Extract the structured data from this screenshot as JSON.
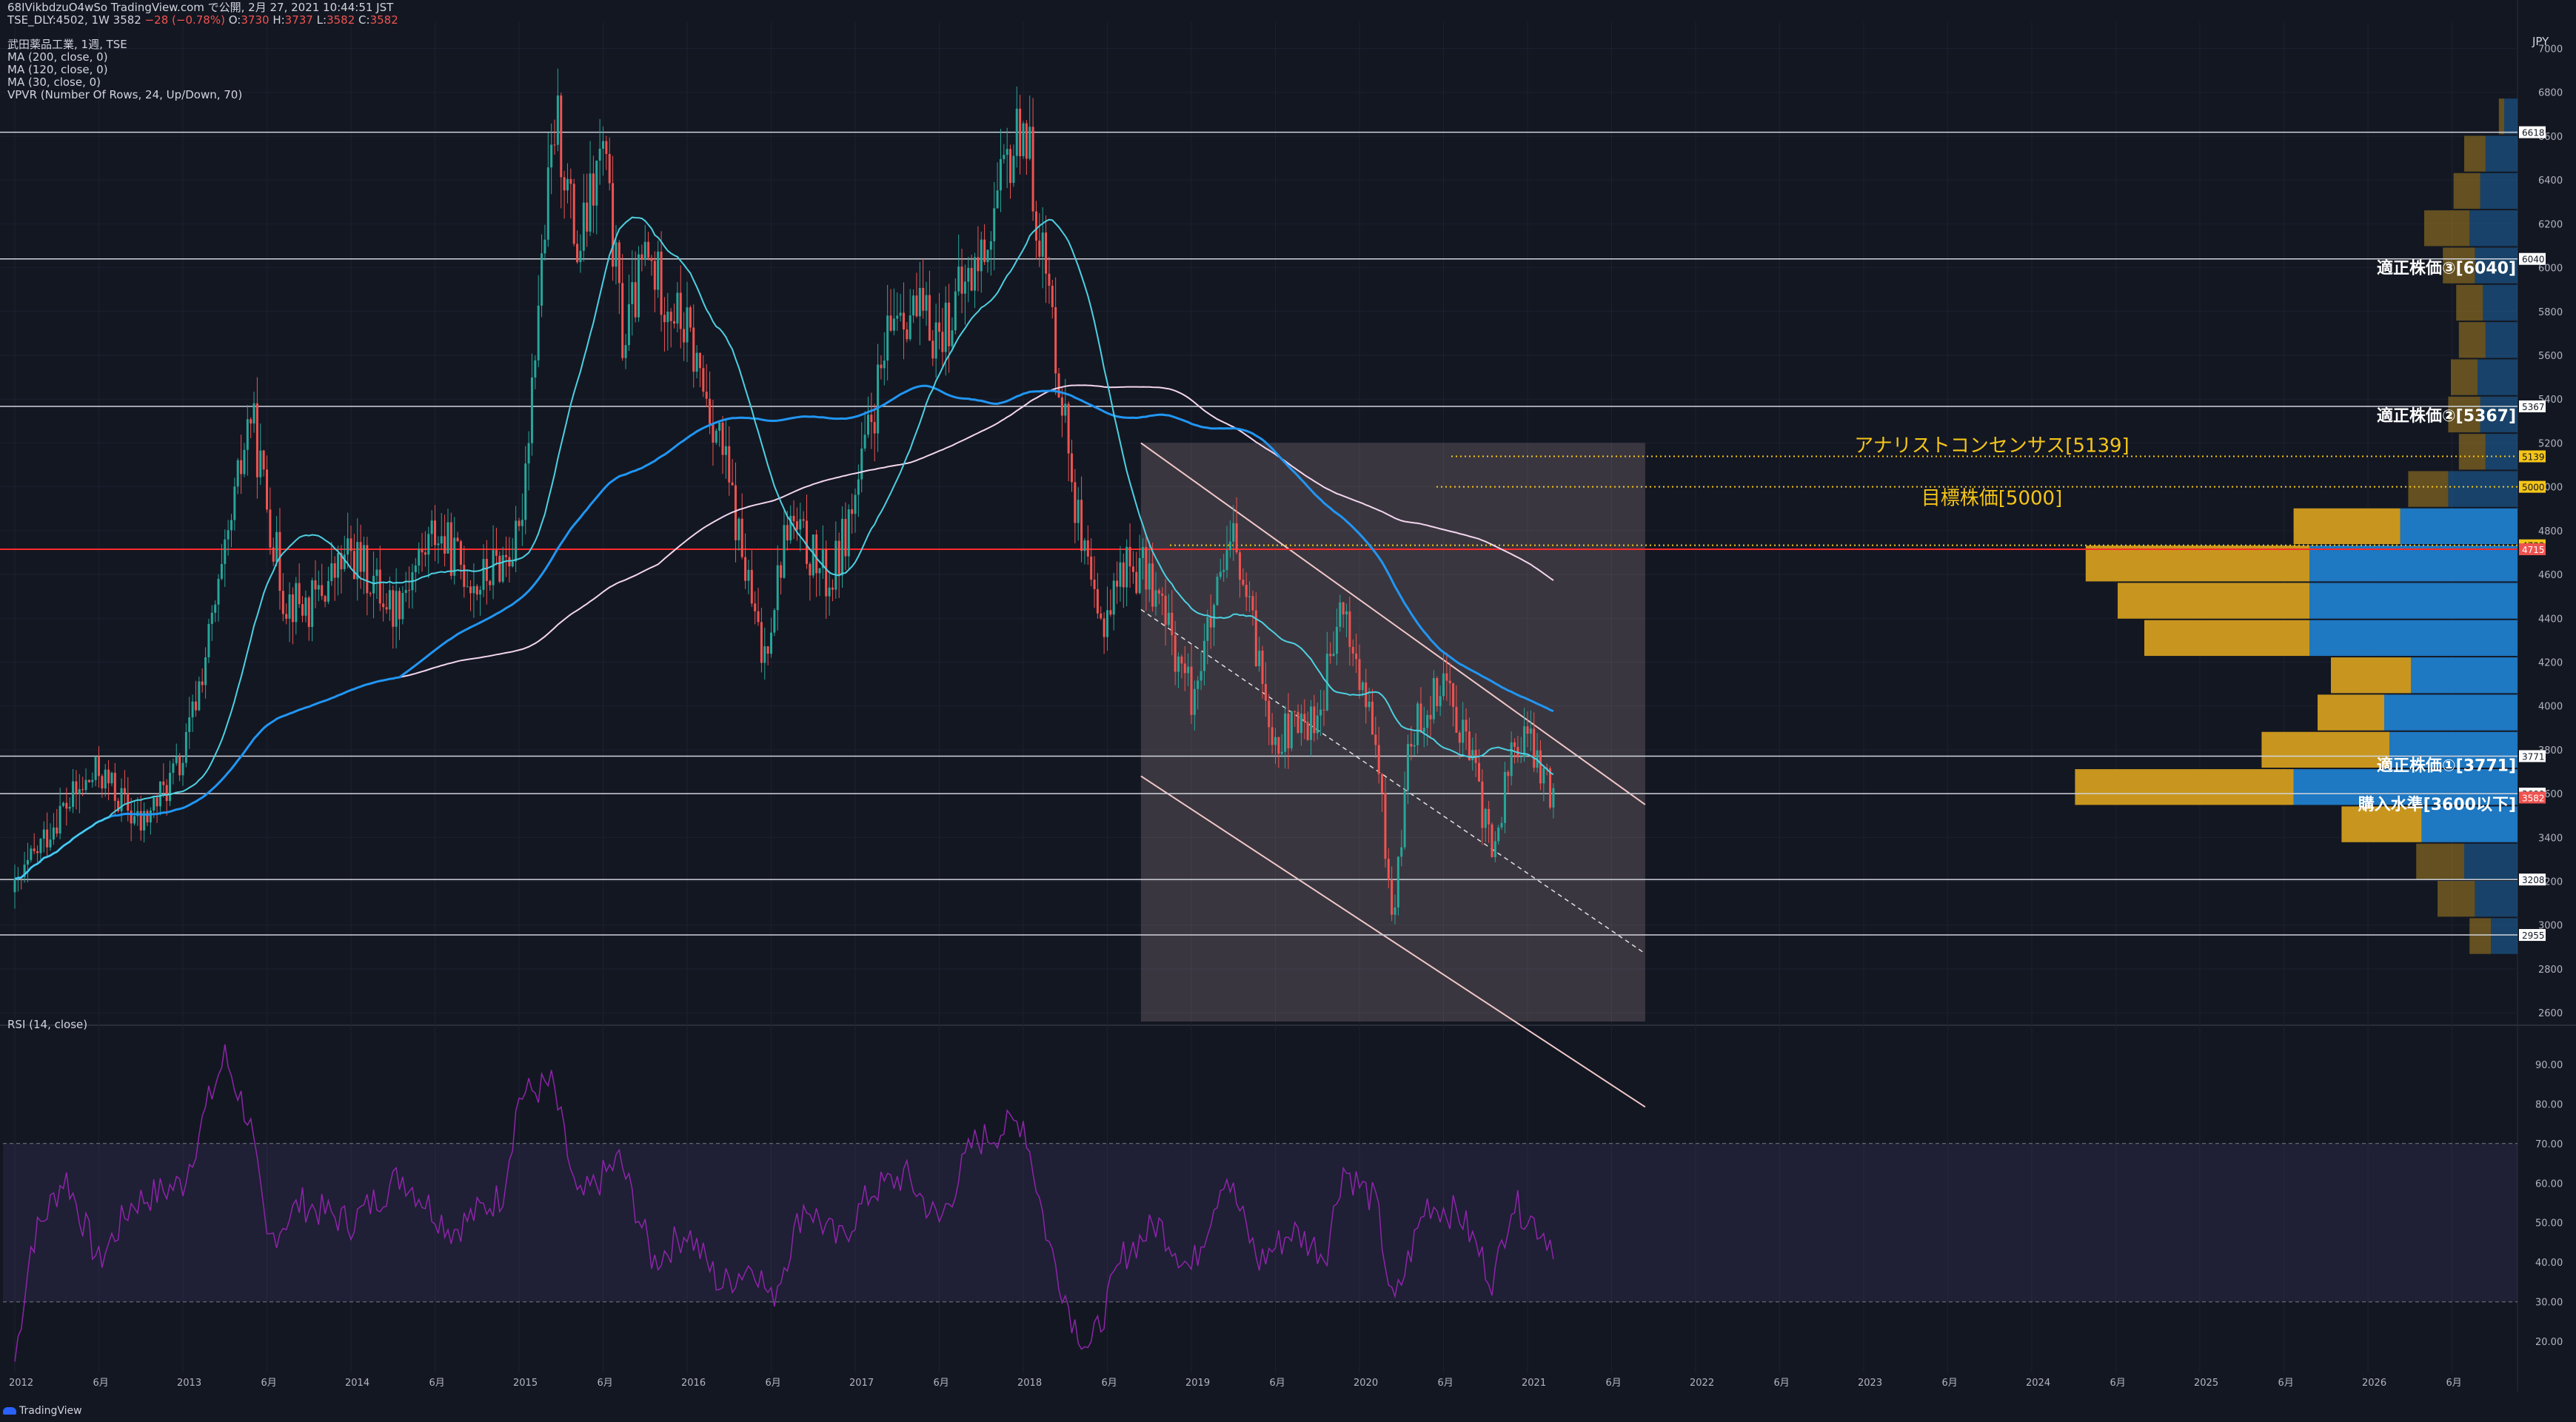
{
  "header": {
    "line1": "68IVikbdzuO4wSo TradingView.com で公開, 2月 27, 2021 10:44:51 JST",
    "symbol_line": "TSE_DLY:4502, 1W 3582",
    "change": "−28 (−0.78%)",
    "o_label": "O:",
    "o": "3730",
    "h_label": "H:",
    "h": "3737",
    "l_label": "L:",
    "l": "3582",
    "c_label": "C:",
    "c": "3582"
  },
  "legend": [
    "武田薬品工業, 1週, TSE",
    "MA (200, close, 0)",
    "MA (120, close, 0)",
    "MA (30, close, 0)",
    "VPVR (Number Of Rows, 24, Up/Down, 70)"
  ],
  "rsi_label": "RSI (14, close)",
  "currency": "JPY",
  "watermark": "TradingView",
  "colors": {
    "background": "#131722",
    "up": "#26a69a",
    "down": "#ef5350",
    "ma200": "#f3d6ef",
    "ma120": "#2196f3",
    "ma30": "#4dd0e1",
    "rsi": "#8e24aa",
    "vp_up": "#1e78c2",
    "vp_down": "#c8961e",
    "annotation": "#f5c518"
  },
  "chart_data": {
    "type": "candlestick",
    "symbol": "TSE_DLY:4502",
    "interval": "1W",
    "y_range": [
      2560,
      7120
    ],
    "price_ticks": [
      2600,
      2800,
      3000,
      3200,
      3400,
      3600,
      3800,
      4000,
      4200,
      4400,
      4600,
      4800,
      5000,
      5200,
      5400,
      5600,
      5800,
      6000,
      6200,
      6400,
      6600,
      6800,
      7000
    ],
    "x_ticks": [
      "2012",
      "6月",
      "2013",
      "6月",
      "2014",
      "6月",
      "2015",
      "6月",
      "2016",
      "6月",
      "2017",
      "6月",
      "2018",
      "6月",
      "2019",
      "6月",
      "2020",
      "6月",
      "2021",
      "6月",
      "2022",
      "6月",
      "2023",
      "6月",
      "2024",
      "6月",
      "2025",
      "6月",
      "2026",
      "6月"
    ],
    "price_anchors": [
      [
        2012.0,
        3150
      ],
      [
        2012.25,
        3500
      ],
      [
        2012.5,
        3700
      ],
      [
        2012.75,
        3450
      ],
      [
        2013.0,
        3750
      ],
      [
        2013.25,
        4650
      ],
      [
        2013.4,
        5350
      ],
      [
        2013.6,
        4500
      ],
      [
        2013.75,
        4450
      ],
      [
        2014.0,
        4700
      ],
      [
        2014.25,
        4450
      ],
      [
        2014.5,
        4800
      ],
      [
        2014.75,
        4550
      ],
      [
        2015.0,
        4750
      ],
      [
        2015.12,
        5900
      ],
      [
        2015.22,
        6700
      ],
      [
        2015.35,
        6050
      ],
      [
        2015.5,
        6550
      ],
      [
        2015.62,
        5650
      ],
      [
        2015.75,
        6050
      ],
      [
        2016.0,
        5700
      ],
      [
        2016.2,
        5200
      ],
      [
        2016.35,
        4600
      ],
      [
        2016.45,
        4200
      ],
      [
        2016.6,
        4850
      ],
      [
        2016.85,
        4550
      ],
      [
        2017.0,
        4950
      ],
      [
        2017.25,
        5850
      ],
      [
        2017.5,
        5700
      ],
      [
        2017.75,
        6050
      ],
      [
        2018.0,
        6700
      ],
      [
        2018.2,
        5600
      ],
      [
        2018.35,
        4700
      ],
      [
        2018.45,
        4350
      ],
      [
        2018.6,
        4650
      ],
      [
        2018.75,
        4600
      ],
      [
        2019.0,
        4050
      ],
      [
        2019.25,
        4750
      ],
      [
        2019.5,
        3850
      ],
      [
        2019.75,
        3950
      ],
      [
        2019.9,
        4450
      ],
      [
        2020.1,
        3800
      ],
      [
        2020.2,
        3000
      ],
      [
        2020.3,
        3850
      ],
      [
        2020.5,
        4150
      ],
      [
        2020.65,
        3800
      ],
      [
        2020.8,
        3300
      ],
      [
        2020.9,
        3800
      ],
      [
        2021.0,
        3850
      ],
      [
        2021.15,
        3582
      ]
    ],
    "horizontal_levels": [
      6618,
      6040,
      5367,
      4715,
      3771,
      3600,
      3208,
      2955
    ],
    "price_labels": [
      {
        "value": 6618,
        "text": "6618",
        "bg": "#ffffff",
        "fg": "#131722"
      },
      {
        "value": 6040,
        "text": "6040",
        "bg": "#ffffff",
        "fg": "#131722"
      },
      {
        "value": 5367,
        "text": "5367",
        "bg": "#ffffff",
        "fg": "#131722"
      },
      {
        "value": 5139,
        "text": "5139",
        "bg": "#f5c518",
        "fg": "#131722"
      },
      {
        "value": 5000,
        "text": "5000",
        "bg": "#f5c518",
        "fg": "#131722"
      },
      {
        "value": 4733,
        "text": "4733",
        "bg": "#f5c518",
        "fg": "#131722"
      },
      {
        "value": 4715,
        "text": "4715",
        "bg": "#ef5350",
        "fg": "#ffffff"
      },
      {
        "value": 3771,
        "text": "3771",
        "bg": "#ffffff",
        "fg": "#131722"
      },
      {
        "value": 3600,
        "text": "3600",
        "bg": "#ffffff",
        "fg": "#131722"
      },
      {
        "value": 3582,
        "text": "3582",
        "bg": "#ef5350",
        "fg": "#ffffff"
      },
      {
        "value": 3208,
        "text": "3208",
        "bg": "#ffffff",
        "fg": "#131722"
      },
      {
        "value": 2955,
        "text": "2955",
        "bg": "#ffffff",
        "fg": "#131722"
      }
    ],
    "annotations": [
      {
        "text": "適正株価③[6040]",
        "value": 6040,
        "color": "#ffffff",
        "bold": true
      },
      {
        "text": "適正株価②[5367]",
        "value": 5367,
        "color": "#ffffff",
        "bold": true
      },
      {
        "text": "アナリストコンセンサス[5139]",
        "value": 5139,
        "color": "#f5c518",
        "bold": false
      },
      {
        "text": "目標株価[5000]",
        "value": 5000,
        "color": "#f5c518",
        "bold": false
      },
      {
        "text": "適正株価①[3771]",
        "value": 3771,
        "color": "#ffffff",
        "bold": true
      },
      {
        "text": "購入水準[3600以下]",
        "value": 3600,
        "color": "#ffffff",
        "bold": true
      }
    ],
    "regression_channel": {
      "start": 2018.7,
      "end": 2021.7,
      "upper": [
        5200,
        3550
      ],
      "mid": [
        4440,
        2870
      ],
      "lower": [
        3680,
        2170
      ],
      "fill_bottom": 2560
    },
    "volume_profile": [
      {
        "price": 6690,
        "up": 0.05,
        "down": 0.02
      },
      {
        "price": 6520,
        "up": 0.12,
        "down": 0.08
      },
      {
        "price": 6350,
        "up": 0.14,
        "down": 0.1
      },
      {
        "price": 6180,
        "up": 0.18,
        "down": 0.17
      },
      {
        "price": 6010,
        "up": 0.16,
        "down": 0.12
      },
      {
        "price": 5840,
        "up": 0.13,
        "down": 0.1
      },
      {
        "price": 5670,
        "up": 0.12,
        "down": 0.1
      },
      {
        "price": 5500,
        "up": 0.15,
        "down": 0.1
      },
      {
        "price": 5330,
        "up": 0.14,
        "down": 0.12
      },
      {
        "price": 5160,
        "up": 0.12,
        "down": 0.1
      },
      {
        "price": 4990,
        "up": 0.26,
        "down": 0.15
      },
      {
        "price": 4820,
        "up": 0.44,
        "down": 0.4
      },
      {
        "price": 4650,
        "up": 0.78,
        "down": 0.84
      },
      {
        "price": 4480,
        "up": 0.78,
        "down": 0.72
      },
      {
        "price": 4310,
        "up": 0.78,
        "down": 0.62
      },
      {
        "price": 4140,
        "up": 0.4,
        "down": 0.3
      },
      {
        "price": 3970,
        "up": 0.5,
        "down": 0.25
      },
      {
        "price": 3800,
        "up": 0.48,
        "down": 0.48
      },
      {
        "price": 3630,
        "up": 0.84,
        "down": 0.82
      },
      {
        "price": 3460,
        "up": 0.36,
        "down": 0.3
      },
      {
        "price": 3290,
        "up": 0.2,
        "down": 0.18
      },
      {
        "price": 3120,
        "up": 0.16,
        "down": 0.14
      },
      {
        "price": 2950,
        "up": 0.1,
        "down": 0.08
      }
    ],
    "rsi": {
      "y_range": [
        12,
        98
      ],
      "ticks": [
        20,
        30,
        40,
        50,
        60,
        70,
        80,
        90
      ],
      "band": [
        30,
        70
      ],
      "anchors": [
        [
          2012.0,
          15
        ],
        [
          2012.1,
          45
        ],
        [
          2012.3,
          62
        ],
        [
          2012.5,
          40
        ],
        [
          2012.7,
          55
        ],
        [
          2013.0,
          60
        ],
        [
          2013.15,
          80
        ],
        [
          2013.25,
          92
        ],
        [
          2013.4,
          75
        ],
        [
          2013.5,
          45
        ],
        [
          2013.7,
          55
        ],
        [
          2014.0,
          50
        ],
        [
          2014.3,
          62
        ],
        [
          2014.6,
          48
        ],
        [
          2014.9,
          57
        ],
        [
          2015.0,
          82
        ],
        [
          2015.2,
          85
        ],
        [
          2015.35,
          55
        ],
        [
          2015.6,
          66
        ],
        [
          2015.8,
          40
        ],
        [
          2016.0,
          48
        ],
        [
          2016.2,
          34
        ],
        [
          2016.4,
          40
        ],
        [
          2016.5,
          30
        ],
        [
          2016.7,
          55
        ],
        [
          2016.9,
          45
        ],
        [
          2017.1,
          58
        ],
        [
          2017.3,
          62
        ],
        [
          2017.5,
          50
        ],
        [
          2017.7,
          70
        ],
        [
          2018.0,
          76
        ],
        [
          2018.15,
          45
        ],
        [
          2018.3,
          25
        ],
        [
          2018.4,
          18
        ],
        [
          2018.6,
          42
        ],
        [
          2018.8,
          50
        ],
        [
          2019.0,
          38
        ],
        [
          2019.2,
          63
        ],
        [
          2019.4,
          40
        ],
        [
          2019.6,
          48
        ],
        [
          2019.8,
          42
        ],
        [
          2019.9,
          64
        ],
        [
          2020.1,
          55
        ],
        [
          2020.2,
          28
        ],
        [
          2020.3,
          42
        ],
        [
          2020.4,
          55
        ],
        [
          2020.6,
          52
        ],
        [
          2020.8,
          35
        ],
        [
          2020.9,
          55
        ],
        [
          2021.0,
          52
        ],
        [
          2021.15,
          45
        ]
      ]
    }
  }
}
